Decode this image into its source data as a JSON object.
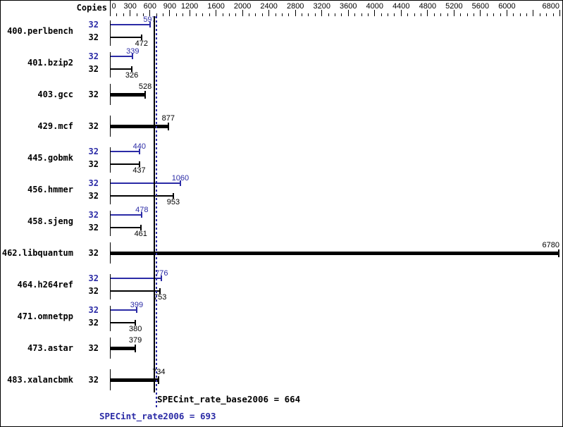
{
  "header": {
    "copies_label": "Copies"
  },
  "colors": {
    "peak_blue": "#2b2ba6",
    "bar_black": "#000000",
    "background": "#ffffff"
  },
  "summary": {
    "base_display": "SPECint_rate_base2006 = 664",
    "peak_display": "SPECint_rate2006 = 693"
  },
  "chart_data": {
    "type": "bar",
    "orientation": "horizontal",
    "title": "",
    "xlabel": "",
    "ylabel": "Copies",
    "xlim": [
      0,
      6800
    ],
    "x_axis": {
      "min": 0,
      "max": 6800,
      "minor_tick_step": 100,
      "major_ticks": [
        0,
        300,
        600,
        900,
        1200,
        1600,
        2000,
        2400,
        2800,
        3200,
        3600,
        4000,
        4400,
        4800,
        5200,
        5600,
        6000,
        6400,
        6800
      ],
      "labeled_ticks": [
        0,
        300,
        600,
        900,
        1200,
        1600,
        2000,
        2400,
        2800,
        3200,
        3600,
        4000,
        4400,
        4800,
        5200,
        5600,
        6000,
        6800
      ]
    },
    "grid": false,
    "legend": "none",
    "rows": [
      {
        "benchmark": "400.perlbench",
        "peak_copies": 32,
        "base_copies": 32,
        "peak": 597,
        "base": 472
      },
      {
        "benchmark": "401.bzip2",
        "peak_copies": 32,
        "base_copies": 32,
        "peak": 339,
        "base": 326
      },
      {
        "benchmark": "403.gcc",
        "base_copies": 32,
        "base": 528
      },
      {
        "benchmark": "429.mcf",
        "base_copies": 32,
        "base": 877
      },
      {
        "benchmark": "445.gobmk",
        "peak_copies": 32,
        "base_copies": 32,
        "peak": 440,
        "base": 437
      },
      {
        "benchmark": "456.hmmer",
        "peak_copies": 32,
        "base_copies": 32,
        "peak": 1060,
        "base": 953
      },
      {
        "benchmark": "458.sjeng",
        "peak_copies": 32,
        "base_copies": 32,
        "peak": 478,
        "base": 461
      },
      {
        "benchmark": "462.libquantum",
        "base_copies": 32,
        "base": 6780
      },
      {
        "benchmark": "464.h264ref",
        "peak_copies": 32,
        "base_copies": 32,
        "peak": 776,
        "base": 753
      },
      {
        "benchmark": "471.omnetpp",
        "peak_copies": 32,
        "base_copies": 32,
        "peak": 399,
        "base": 380
      },
      {
        "benchmark": "473.astar",
        "base_copies": 32,
        "base": 379
      },
      {
        "benchmark": "483.xalancbmk",
        "base_copies": 32,
        "base": 734
      }
    ],
    "reference_lines": [
      {
        "name": "SPECint_rate_base2006",
        "value": 664,
        "color": "#000000",
        "style": "solid"
      },
      {
        "name": "SPECint_rate2006",
        "value": 693,
        "color": "#2b2ba6",
        "style": "dotted"
      }
    ]
  }
}
